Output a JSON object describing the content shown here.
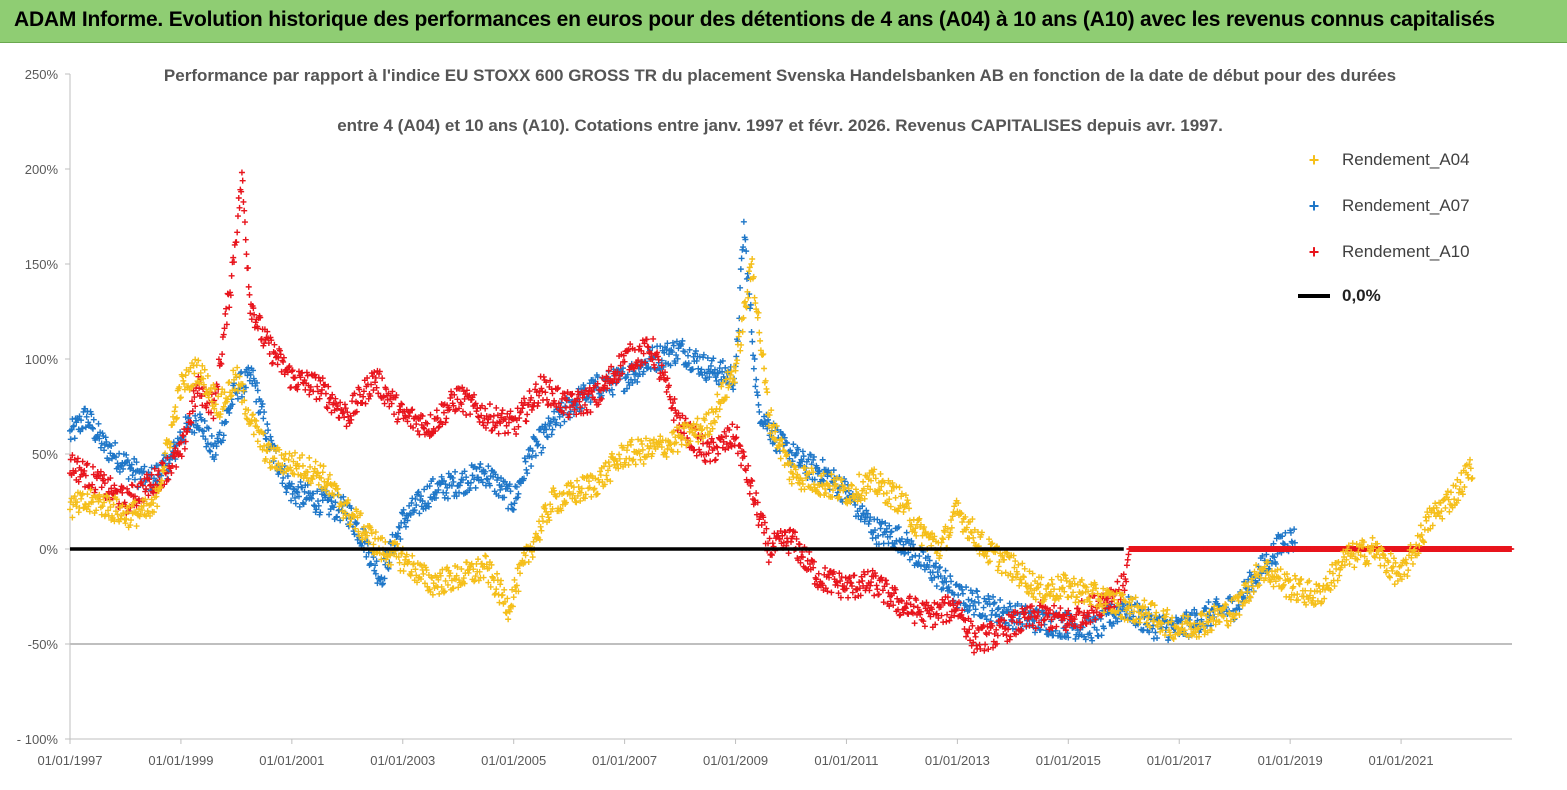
{
  "banner": {
    "title": "ADAM Informe. Evolution historique des performances en euros pour des détentions de 4 ans (A04) à 10 ans (A10) avec les revenus connus capitalisés"
  },
  "colors": {
    "banner_bg": "#8fcd73",
    "a04": "#f5bf1a",
    "a07": "#1f77c8",
    "a10": "#e8141c",
    "zero": "#000000"
  },
  "chart_data": {
    "type": "scatter",
    "title_lines": [
      "Performance par rapport à l'indice EU STOXX 600 GROSS TR  du placement Svenska Handelsbanken AB en fonction de la date de début pour des durées",
      "entre 4 (A04) et 10 ans (A10). Cotations entre janv. 1997 et févr. 2026. Revenus CAPITALISES depuis avr. 1997."
    ],
    "ylim": [
      -100,
      250
    ],
    "yticks": [
      -100,
      -50,
      0,
      50,
      100,
      150,
      200,
      250
    ],
    "ytick_labels": [
      "- 100%",
      "-50%",
      "0%",
      "50%",
      "100%",
      "150%",
      "200%",
      "250%"
    ],
    "xlim": [
      1997.0,
      2023.0
    ],
    "xticks": [
      1997,
      1999,
      2001,
      2003,
      2005,
      2007,
      2009,
      2011,
      2013,
      2015,
      2017,
      2019,
      2021
    ],
    "xtick_labels": [
      "01/01/1997",
      "01/01/1999",
      "01/01/2001",
      "01/01/2003",
      "01/01/2005",
      "01/01/2007",
      "01/01/2009",
      "01/01/2011",
      "01/01/2013",
      "01/01/2015",
      "01/01/2017",
      "01/01/2019",
      "01/01/2021"
    ],
    "legend_position": "top-right",
    "series": [
      {
        "name": "Rendement_A04",
        "marker": "+",
        "x": [
          1997.0,
          1997.5,
          1998.0,
          1998.5,
          1999.0,
          1999.3,
          1999.7,
          2000.0,
          2000.3,
          2000.6,
          2001.0,
          2001.5,
          2002.0,
          2002.3,
          2002.6,
          2003.0,
          2003.5,
          2004.0,
          2004.5,
          2004.9,
          2005.3,
          2005.7,
          2006.0,
          2006.5,
          2007.0,
          2007.5,
          2008.0,
          2008.5,
          2009.0,
          2009.3,
          2009.6,
          2010.0,
          2010.5,
          2011.0,
          2011.5,
          2012.0,
          2012.3,
          2012.7,
          2013.0,
          2013.5,
          2014.0,
          2014.5,
          2015.0,
          2015.5,
          2016.0,
          2016.5,
          2017.0,
          2017.5,
          2018.0,
          2018.5,
          2019.0,
          2019.5,
          2020.0,
          2020.5,
          2021.0,
          2021.5,
          2022.0,
          2022.3
        ],
        "values": [
          22,
          25,
          18,
          20,
          85,
          95,
          75,
          90,
          65,
          48,
          45,
          40,
          20,
          10,
          0,
          -5,
          -18,
          -15,
          -10,
          -30,
          0,
          25,
          28,
          35,
          50,
          52,
          58,
          65,
          95,
          150,
          70,
          40,
          35,
          30,
          35,
          25,
          10,
          0,
          20,
          0,
          -10,
          -22,
          -20,
          -25,
          -30,
          -35,
          -42,
          -38,
          -32,
          -10,
          -20,
          -25,
          -5,
          0,
          -15,
          15,
          30,
          45
        ]
      },
      {
        "name": "Rendement_A07",
        "marker": "+",
        "x": [
          1997.0,
          1997.3,
          1997.6,
          1998.0,
          1998.4,
          1998.8,
          1999.0,
          1999.3,
          1999.6,
          2000.0,
          2000.3,
          2000.6,
          2001.0,
          2001.5,
          2002.0,
          2002.3,
          2002.6,
          2003.0,
          2003.5,
          2004.0,
          2004.5,
          2005.0,
          2005.3,
          2005.7,
          2006.0,
          2006.5,
          2007.0,
          2007.5,
          2008.0,
          2008.5,
          2009.0,
          2009.15,
          2009.4,
          2009.8,
          2010.2,
          2010.6,
          2011.0,
          2011.5,
          2012.0,
          2012.3,
          2012.7,
          2013.0,
          2013.5,
          2014.0,
          2014.5,
          2015.0,
          2015.5,
          2016.0,
          2016.5,
          2017.0,
          2017.5,
          2018.0,
          2018.5,
          2018.9,
          2019.1
        ],
        "values": [
          60,
          70,
          55,
          45,
          35,
          45,
          60,
          70,
          50,
          85,
          90,
          55,
          30,
          25,
          20,
          5,
          -15,
          15,
          30,
          35,
          40,
          25,
          50,
          65,
          75,
          85,
          90,
          100,
          105,
          95,
          90,
          170,
          75,
          55,
          45,
          40,
          30,
          10,
          5,
          -5,
          -15,
          -25,
          -30,
          -35,
          -38,
          -40,
          -42,
          -30,
          -40,
          -42,
          -35,
          -30,
          -10,
          5,
          5
        ]
      },
      {
        "name": "Rendement_A10",
        "marker": "+",
        "x": [
          1997.0,
          1997.5,
          1998.0,
          1998.5,
          1999.0,
          1999.3,
          1999.6,
          1999.9,
          2000.1,
          2000.25,
          2000.5,
          2001.0,
          2001.5,
          2002.0,
          2002.5,
          2003.0,
          2003.5,
          2004.0,
          2004.5,
          2005.0,
          2005.5,
          2006.0,
          2006.5,
          2007.0,
          2007.5,
          2008.0,
          2008.5,
          2009.0,
          2009.3,
          2009.6,
          2010.0,
          2010.5,
          2011.0,
          2011.5,
          2012.0,
          2012.5,
          2013.0,
          2013.3,
          2013.7,
          2014.0,
          2014.5,
          2015.0,
          2015.5,
          2016.0,
          2016.1,
          2017.0,
          2018.0,
          2019.0,
          2020.0,
          2021.0,
          2022.0,
          2023.0
        ],
        "values": [
          45,
          35,
          25,
          35,
          50,
          85,
          75,
          140,
          195,
          130,
          110,
          90,
          85,
          70,
          90,
          70,
          65,
          80,
          70,
          65,
          85,
          75,
          80,
          100,
          105,
          65,
          50,
          60,
          30,
          0,
          5,
          -15,
          -20,
          -18,
          -30,
          -35,
          -30,
          -48,
          -45,
          -40,
          -35,
          -38,
          -30,
          -20,
          0,
          0,
          0,
          0,
          0,
          0,
          0,
          0
        ]
      },
      {
        "name": "0,0%",
        "type": "line",
        "x": [
          1997.0,
          2016.0
        ],
        "values": [
          0,
          0
        ]
      }
    ]
  }
}
